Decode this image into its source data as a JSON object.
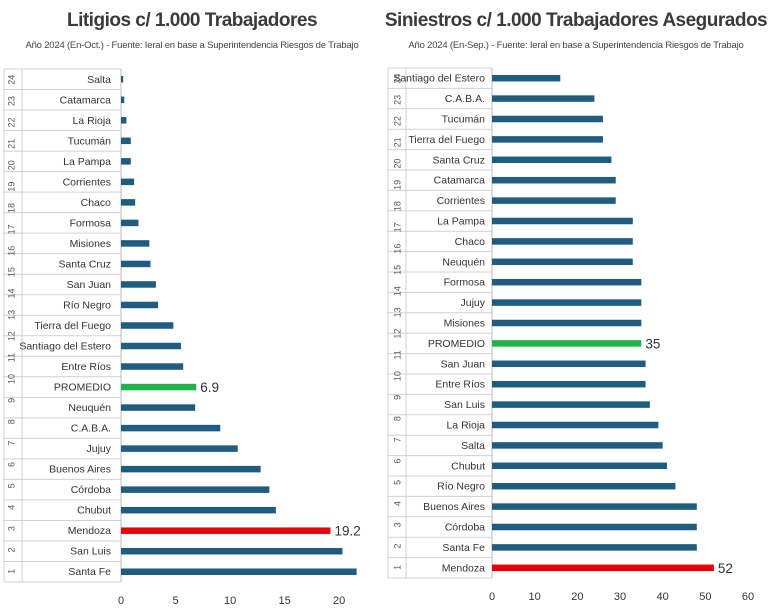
{
  "colors": {
    "bar": "#1f5c7f",
    "average": "#22b14c",
    "highlight": "#e8000b",
    "grid": "#d0d0d0",
    "text": "#333333"
  },
  "chart_data": [
    {
      "type": "bar",
      "orientation": "horizontal",
      "title": "Litigios c/ 1.000 Trabajadores",
      "subtitle": "Año 2024 (En-Oct.) - Fuente: Ieral en base a Superintendencia Riesgos de Trabajo",
      "xlim": [
        0,
        22
      ],
      "xticks": [
        0,
        5,
        10,
        15,
        20
      ],
      "rank_labels": [
        "24",
        "23",
        "22",
        "21",
        "20",
        "19",
        "18",
        "17",
        "16",
        "15",
        "14",
        "13",
        "12",
        "11",
        "10",
        "9",
        "8",
        "7",
        "6",
        "5",
        "4",
        "3",
        "2",
        "1"
      ],
      "categories": [
        "Salta",
        "Catamarca",
        "La Rioja",
        "Tucumán",
        "La Pampa",
        "Corrientes",
        "Chaco",
        "Formosa",
        "Misiones",
        "Santa Cruz",
        "San Juan",
        "Río Negro",
        "Tierra del Fuego",
        "Santiago del Estero",
        "Entre Ríos",
        "PROMEDIO",
        "Neuquén",
        "C.A.B.A.",
        "Jujuy",
        "Buenos Aires",
        "Córdoba",
        "Chubut",
        "Mendoza",
        "San Luis",
        "Santa Fe"
      ],
      "values": [
        0.2,
        0.3,
        0.5,
        0.9,
        0.9,
        1.2,
        1.3,
        1.6,
        2.6,
        2.7,
        3.2,
        3.4,
        4.8,
        5.5,
        5.7,
        6.9,
        6.8,
        9.1,
        10.7,
        12.8,
        13.6,
        14.2,
        19.2,
        20.3,
        21.6
      ],
      "average_index": 15,
      "highlight_index": 22,
      "data_labels": {
        "15": "6.9",
        "22": "19.2"
      }
    },
    {
      "type": "bar",
      "orientation": "horizontal",
      "title": "Siniestros c/ 1.000 Trabajadores Asegurados",
      "subtitle": "Año 2024 (En-Sep.) - Fuente: Ieral en base a Superintendencia Riesgos de Trabajo",
      "xlim": [
        0,
        60
      ],
      "xticks": [
        0,
        10,
        20,
        30,
        40,
        50,
        60
      ],
      "rank_labels": [
        "24",
        "23",
        "22",
        "21",
        "20",
        "19",
        "18",
        "17",
        "16",
        "15",
        "14",
        "13",
        "12",
        "11",
        "10",
        "9",
        "8",
        "7",
        "6",
        "5",
        "4",
        "3",
        "2",
        "1"
      ],
      "categories": [
        "Santiago del Estero",
        "C.A.B.A.",
        "Tucumán",
        "Tierra del Fuego",
        "Santa Cruz",
        "Catamarca",
        "Corrientes",
        "La Pampa",
        "Chaco",
        "Neuquén",
        "Formosa",
        "Jujuy",
        "Misiones",
        "PROMEDIO",
        "San Juan",
        "Entre Ríos",
        "San Luis",
        "La Rioja",
        "Salta",
        "Chubut",
        "Río Negro",
        "Buenos Aires",
        "Córdoba",
        "Santa Fe",
        "Mendoza"
      ],
      "values": [
        16,
        24,
        26,
        26,
        28,
        29,
        29,
        33,
        33,
        33,
        35,
        35,
        35,
        35,
        36,
        36,
        37,
        39,
        40,
        41,
        43,
        48,
        48,
        48,
        52
      ],
      "average_index": 13,
      "highlight_index": 24,
      "data_labels": {
        "13": "35",
        "24": "52"
      }
    }
  ]
}
